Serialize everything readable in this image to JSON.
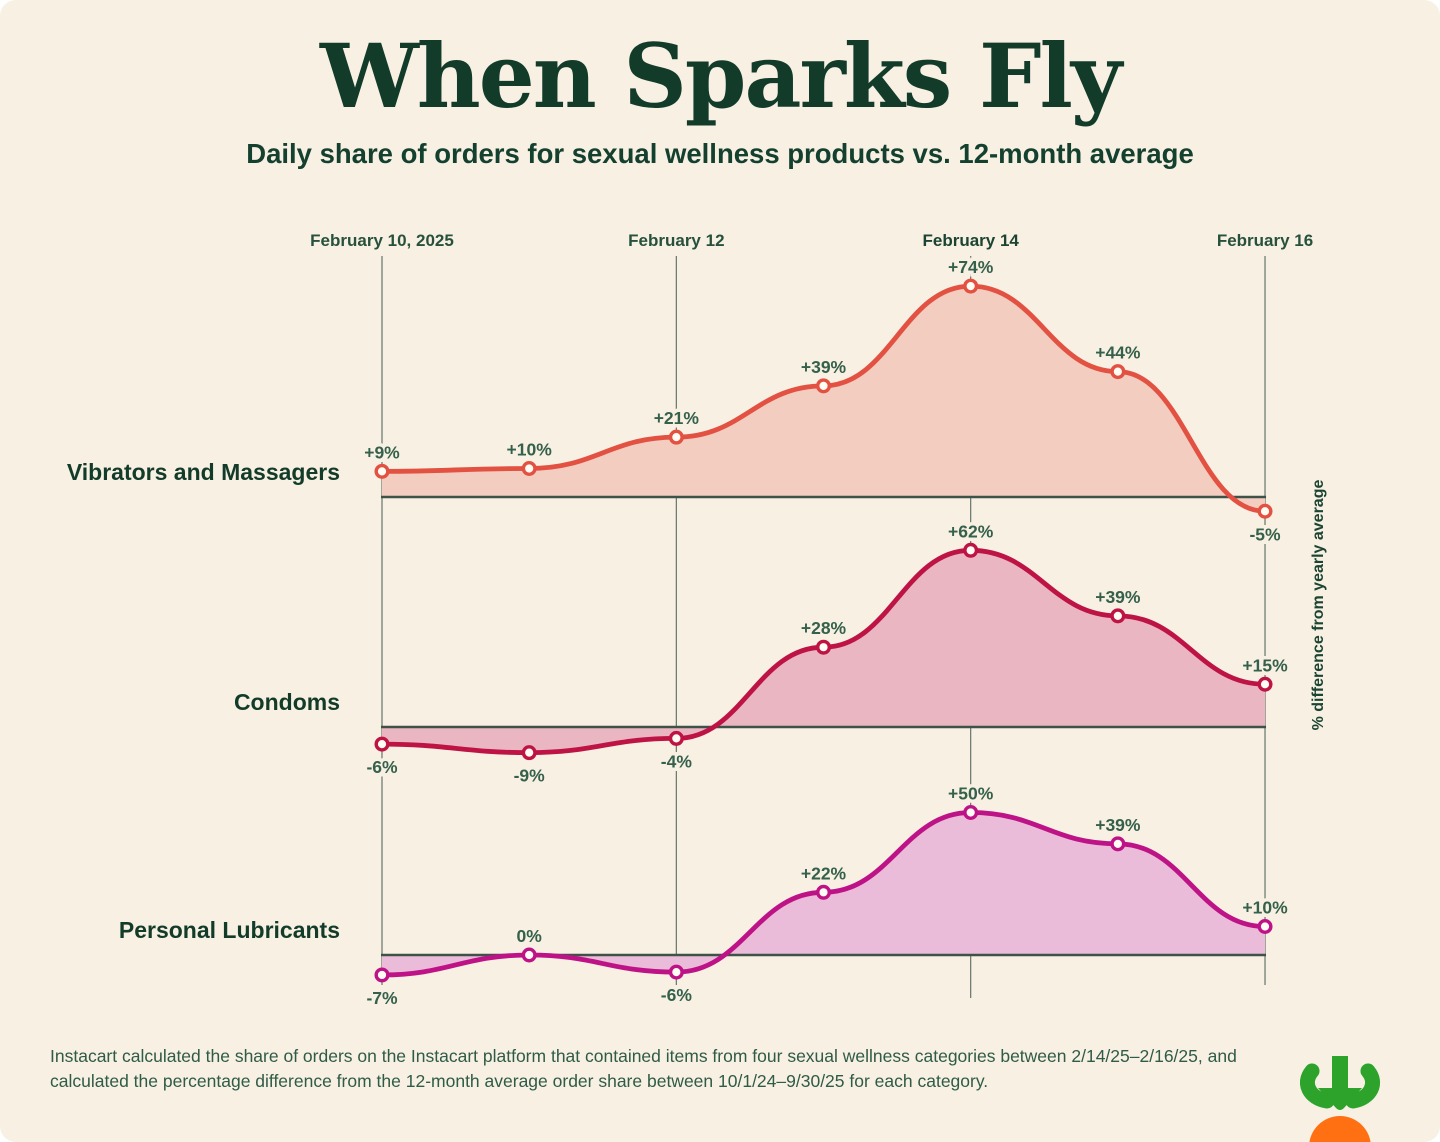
{
  "page": {
    "title": "When Sparks Fly",
    "subtitle": "Daily share of orders for sexual wellness products vs. 12-month average",
    "footnote": "Instacart calculated the share of orders on the Instacart platform that contained items from four sexual wellness categories between 2/14/25–2/16/25, and calculated the percentage difference from the 12-month average order share between 10/1/24–9/30/25 for each category.",
    "logo": "instacart-carrot-logo"
  },
  "colors": {
    "background": "#F8F0E3",
    "title": "#123B2A",
    "series_name": "#123B2A",
    "value_label": "#35604B",
    "date_label": "#27513D",
    "date_label_bold": "#1C4433",
    "axis_line": "#3E5247",
    "gridline": "#66756A",
    "dot_fill": "#FFFCF4",
    "logo_green": "#2DA32C",
    "logo_orange": "#FF7012"
  },
  "chart_data": {
    "type": "area",
    "title": "When Sparks Fly",
    "subtitle": "Daily share of orders for sexual wellness products vs. 12-month average",
    "ylabel": "% difference from yearly average",
    "x_days": [
      "Feb 10",
      "Feb 11",
      "Feb 12",
      "Feb 13",
      "Feb 14",
      "Feb 15",
      "Feb 16"
    ],
    "x_tick_labels": [
      "February 10, 2025",
      "February 12",
      "February 14",
      "February 16"
    ],
    "x_tick_point_index": [
      0,
      2,
      4,
      6
    ],
    "x_tick_emphasis": [
      false,
      false,
      true,
      false
    ],
    "grid": true,
    "legend_position": "left-of-each-ridge",
    "series": [
      {
        "name": "Vibrators and Massagers",
        "values": [
          9,
          10,
          21,
          39,
          74,
          44,
          -5
        ],
        "point_labels": [
          "+9%",
          "+10%",
          "+21%",
          "+39%",
          "+74%",
          "+44%",
          "-5%"
        ],
        "line_color": "#E25141",
        "fill_color": "#F3CDC0"
      },
      {
        "name": "Condoms",
        "values": [
          -6,
          -9,
          -4,
          28,
          62,
          39,
          15
        ],
        "point_labels": [
          "-6%",
          "-9%",
          "-4%",
          "+28%",
          "+62%",
          "+39%",
          "+15%"
        ],
        "line_color": "#BE1345",
        "fill_color": "#EAB6C1"
      },
      {
        "name": "Personal Lubricants",
        "values": [
          -7,
          0,
          -6,
          22,
          50,
          39,
          10
        ],
        "point_labels": [
          "-7%",
          "0%",
          "-6%",
          "+22%",
          "+50%",
          "+39%",
          "+10%"
        ],
        "line_color": "#BE1387",
        "fill_color": "#EBBCD9"
      }
    ]
  }
}
